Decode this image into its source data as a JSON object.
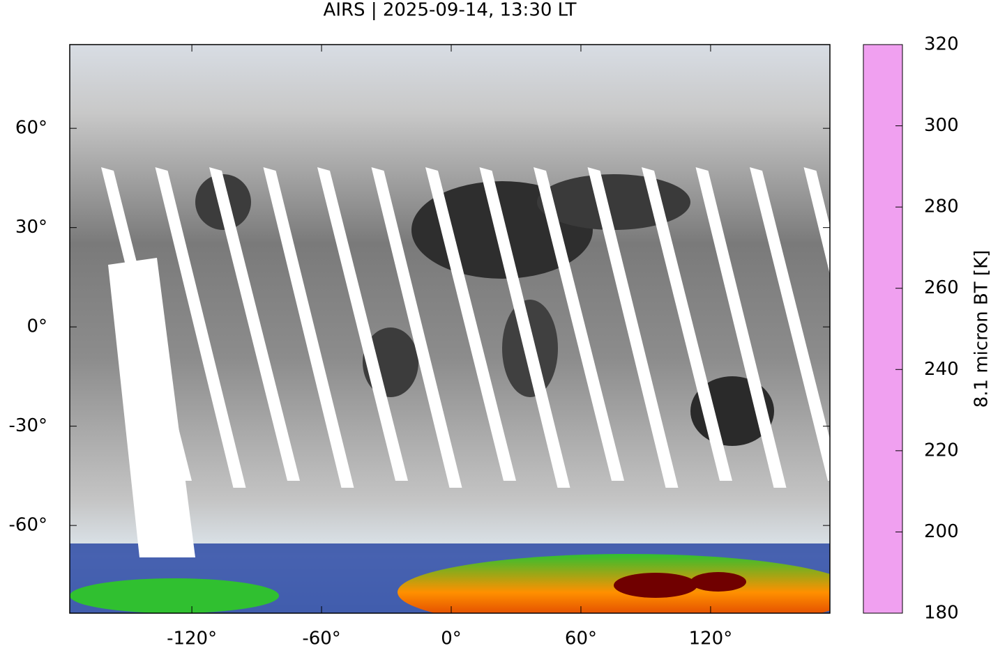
{
  "chart_data": {
    "type": "map",
    "title": "AIRS | 2025-09-14, 13:30 LT",
    "xlim": [
      -176.5,
      175.2
    ],
    "ylim": [
      -86.5,
      85.3
    ],
    "xticks": [
      {
        "value": -120,
        "label": "-120°"
      },
      {
        "value": -60,
        "label": "-60°"
      },
      {
        "value": 0,
        "label": "0°"
      },
      {
        "value": 60,
        "label": "60°"
      },
      {
        "value": 120,
        "label": "120°"
      }
    ],
    "yticks": [
      {
        "value": 60,
        "label": "60°"
      },
      {
        "value": 30,
        "label": "30°"
      },
      {
        "value": 0,
        "label": "0°"
      },
      {
        "value": -30,
        "label": "-30°"
      },
      {
        "value": -60,
        "label": "-60°"
      }
    ],
    "colorbar": {
      "label": "8.1 micron BT [K]",
      "lim": [
        180,
        320
      ],
      "ticks": [
        180,
        200,
        220,
        240,
        260,
        280,
        300,
        320
      ],
      "colormap": [
        {
          "value": 180,
          "color": "#f0a0f0"
        },
        {
          "value": 190,
          "color": "#ffffff"
        },
        {
          "value": 198,
          "color": "#808080"
        },
        {
          "value": 200,
          "color": "#000000"
        },
        {
          "value": 205,
          "color": "#600000"
        },
        {
          "value": 210,
          "color": "#e00000"
        },
        {
          "value": 215,
          "color": "#ff8000"
        },
        {
          "value": 220,
          "color": "#ffe000"
        },
        {
          "value": 225,
          "color": "#a0e000"
        },
        {
          "value": 230,
          "color": "#00e000"
        },
        {
          "value": 235,
          "color": "#008040"
        },
        {
          "value": 238,
          "color": "#0000a0"
        },
        {
          "value": 245,
          "color": "#6080c0"
        },
        {
          "value": 252,
          "color": "#b0d0e0"
        },
        {
          "value": 260,
          "color": "#ffffff"
        },
        {
          "value": 320,
          "color": "#000000"
        }
      ]
    }
  }
}
